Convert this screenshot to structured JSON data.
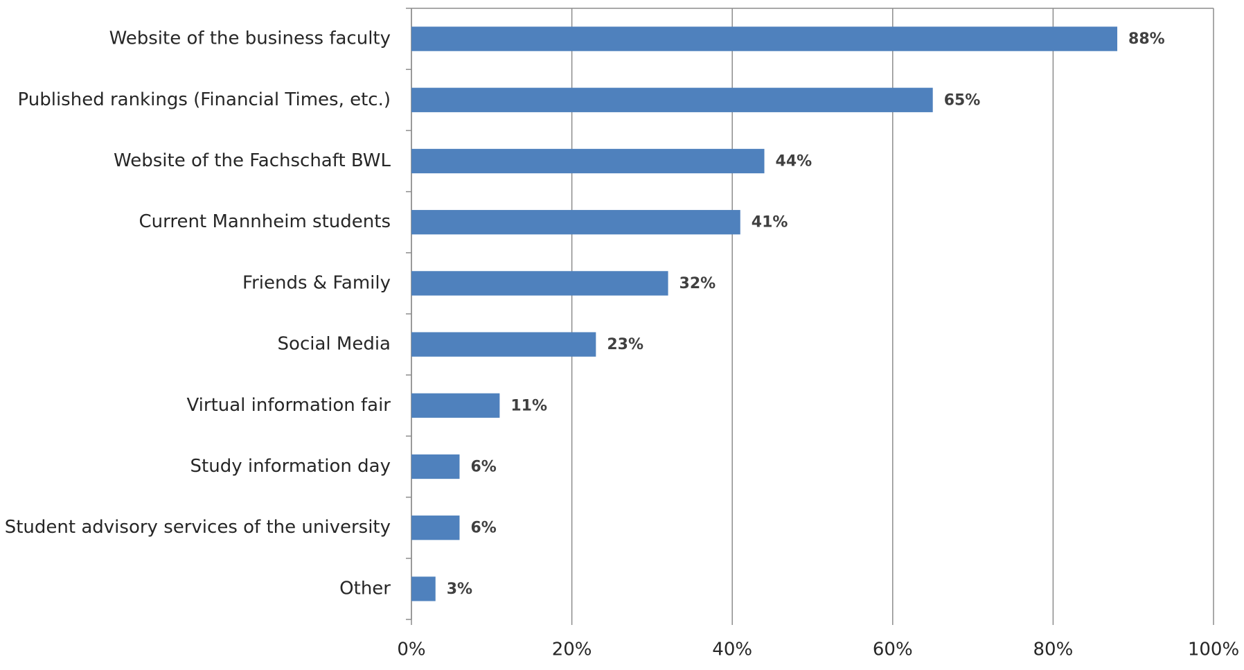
{
  "chart_data": {
    "type": "bar",
    "orientation": "horizontal",
    "categories": [
      "Website of the business faculty",
      "Published rankings (Financial Times, etc.)",
      "Website of the Fachschaft BWL",
      "Current Mannheim students",
      "Friends & Family",
      "Social Media",
      "Virtual information fair",
      "Study information day",
      "Student advisory services of the university",
      "Other"
    ],
    "values": [
      88,
      65,
      44,
      41,
      32,
      23,
      11,
      6,
      6,
      3
    ],
    "value_labels": [
      "88%",
      "65%",
      "44%",
      "41%",
      "32%",
      "23%",
      "11%",
      "6%",
      "6%",
      "3%"
    ],
    "color": "#4f81bd",
    "xlim": [
      0,
      100
    ],
    "xticks": [
      {
        "value": 0,
        "label": "0%"
      },
      {
        "value": 20,
        "label": "20%"
      },
      {
        "value": 40,
        "label": "40%"
      },
      {
        "value": 60,
        "label": "60%"
      },
      {
        "value": 80,
        "label": "80%"
      },
      {
        "value": 100,
        "label": "100%"
      }
    ],
    "grid": true
  }
}
